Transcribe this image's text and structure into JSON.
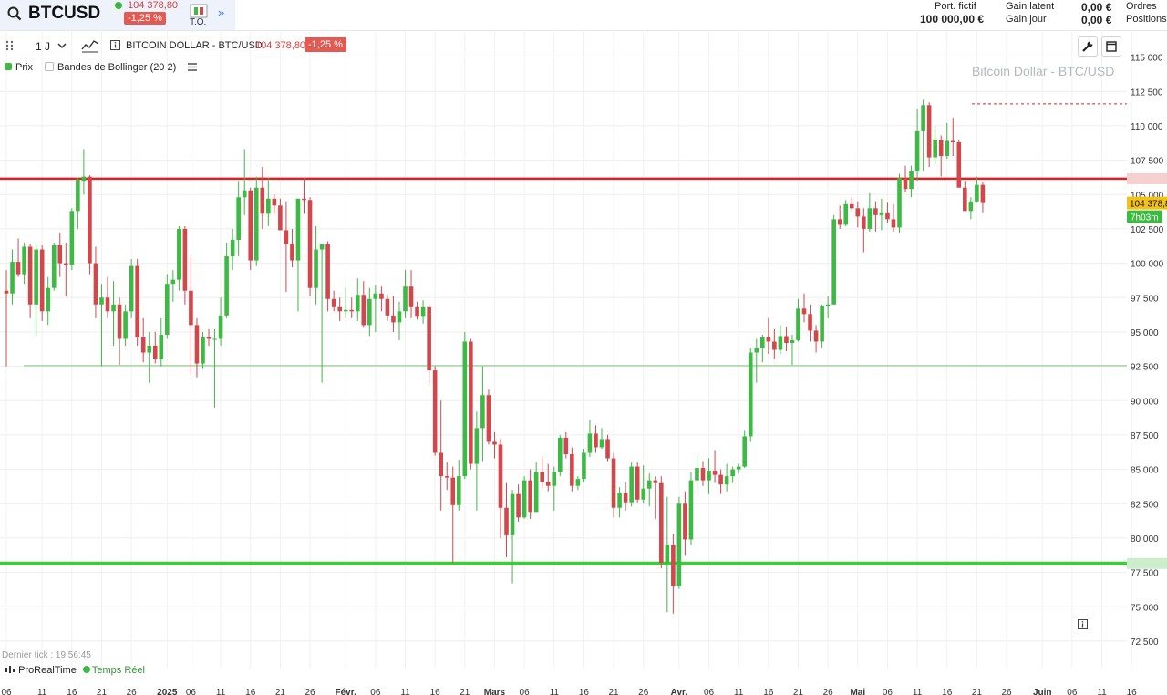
{
  "header": {
    "symbol": "BTCUSD",
    "last_price": "104 378,80",
    "change": "-1,25 %",
    "to_label": "T.O.",
    "portfolio_label": "Port. fictif",
    "portfolio_value": "100 000,00 €",
    "gain_latent_label": "Gain latent",
    "gain_latent_value": "0,00 €",
    "gain_jour_label": "Gain jour",
    "gain_jour_value": "0,00 €",
    "orders_label": "Ordres",
    "positions_label": "Positions"
  },
  "toolbar": {
    "timeframe": "1 J",
    "instrument": "BITCOIN DOLLAR - BTC/USD",
    "price": "104 378,80",
    "change": "-1,25 %"
  },
  "legend": {
    "price_label": "Prix",
    "bollinger_label": "Bandes de Bollinger (20 2)"
  },
  "chart_overlay": {
    "watermark": "Bitcoin Dollar - BTC/USD",
    "price_tag": "104 378,8",
    "countdown": "7h03m",
    "last_tick": "Dernier tick : 19:56:45",
    "realtime_brand": "ProRealTime",
    "realtime_label": "Temps Réel"
  },
  "colors": {
    "bull": "#3cba43",
    "bear": "#d2474b",
    "resistance": "#e02020",
    "support": "#3ecb3e",
    "mid_line": "#79c979",
    "price_tag_bg": "#f2c21b",
    "countdown_bg": "#3cba43"
  },
  "chart_data": {
    "type": "candlestick",
    "title": "BITCOIN DOLLAR - BTC/USD",
    "interval": "1 J",
    "y_ticks": [
      "115 000",
      "112 500",
      "110 000",
      "107 500",
      "105 000",
      "102 500",
      "100 000",
      "97 500",
      "95 000",
      "92 500",
      "90 000",
      "87 500",
      "85 000",
      "82 500",
      "80 000",
      "77 500",
      "75 000",
      "72 500"
    ],
    "y_values": [
      115000,
      112500,
      110000,
      107500,
      105000,
      102500,
      100000,
      97500,
      95000,
      92500,
      90000,
      87500,
      85000,
      82500,
      80000,
      77500,
      75000,
      72500
    ],
    "ylim": [
      71300,
      116300
    ],
    "x_ticks": [
      "06",
      "11",
      "16",
      "21",
      "26",
      "2025",
      "06",
      "11",
      "16",
      "21",
      "26",
      "Févr.",
      "06",
      "11",
      "16",
      "21",
      "Mars",
      "06",
      "11",
      "16",
      "21",
      "26",
      "Avr.",
      "06",
      "11",
      "16",
      "21",
      "26",
      "Mai",
      "06",
      "11",
      "16",
      "21",
      "26",
      "Juin",
      "06",
      "11",
      "16"
    ],
    "x_tick_index": [
      0,
      6,
      11,
      16,
      21,
      27,
      31,
      36,
      41,
      46,
      51,
      57,
      62,
      67,
      72,
      77,
      82,
      87,
      92,
      97,
      102,
      107,
      113,
      118,
      123,
      128,
      133,
      138,
      143,
      148,
      153,
      158,
      163,
      168,
      174,
      179,
      184,
      189
    ],
    "horizontal_lines": [
      {
        "value": 106150,
        "role": "resistance"
      },
      {
        "value": 92550,
        "role": "mid"
      },
      {
        "value": 78150,
        "role": "support"
      },
      {
        "value": 111600,
        "role": "recent-high",
        "dashed": true
      }
    ],
    "current_price": 104378.8,
    "series": [
      {
        "values_ohlc": [
          [
            98000,
            99500,
            92500,
            97800
          ],
          [
            97800,
            101000,
            97000,
            100100
          ],
          [
            100100,
            101800,
            99000,
            99200
          ],
          [
            99200,
            101500,
            98500,
            101200
          ],
          [
            101200,
            101400,
            96000,
            97000
          ],
          [
            97000,
            101300,
            94700,
            101000
          ],
          [
            101000,
            101300,
            95800,
            96500
          ],
          [
            96500,
            99000,
            95500,
            98200
          ],
          [
            98200,
            101500,
            98000,
            101300
          ],
          [
            101300,
            102200,
            99000,
            100000
          ],
          [
            100000,
            101500,
            97600,
            99900
          ],
          [
            99900,
            104000,
            99500,
            103800
          ],
          [
            103800,
            106200,
            102500,
            106100
          ],
          [
            106000,
            108300,
            105000,
            106300
          ],
          [
            106300,
            106400,
            99200,
            100000
          ],
          [
            100000,
            101200,
            96000,
            97000
          ],
          [
            97000,
            98500,
            92500,
            97500
          ],
          [
            97500,
            99000,
            96000,
            96500
          ],
          [
            96500,
            98700,
            94000,
            97000
          ],
          [
            97000,
            97500,
            92600,
            94500
          ],
          [
            94500,
            97000,
            94000,
            96500
          ],
          [
            96500,
            100300,
            96000,
            99800
          ],
          [
            99800,
            100300,
            94000,
            94600
          ],
          [
            94600,
            96000,
            92800,
            93500
          ],
          [
            93500,
            95000,
            91300,
            94000
          ],
          [
            94000,
            95000,
            92700,
            93000
          ],
          [
            93000,
            96000,
            92500,
            94800
          ],
          [
            94800,
            99200,
            94500,
            98500
          ],
          [
            98500,
            99500,
            97200,
            98800
          ],
          [
            98800,
            102700,
            98000,
            102500
          ],
          [
            102500,
            102700,
            97000,
            98000
          ],
          [
            98000,
            100500,
            92000,
            95500
          ],
          [
            95500,
            96000,
            91700,
            92700
          ],
          [
            92700,
            95000,
            92300,
            94600
          ],
          [
            94600,
            95200,
            94000,
            94500
          ],
          [
            94500,
            95200,
            89500,
            94500
          ],
          [
            94500,
            97500,
            94000,
            96200
          ],
          [
            96200,
            101500,
            96000,
            100500
          ],
          [
            100500,
            102500,
            99500,
            101700
          ],
          [
            101700,
            106000,
            100500,
            104800
          ],
          [
            104800,
            108300,
            103500,
            105300
          ],
          [
            105300,
            105500,
            99500,
            100200
          ],
          [
            100200,
            106300,
            99800,
            105500
          ],
          [
            105500,
            107000,
            102500,
            103600
          ],
          [
            103600,
            106200,
            102700,
            104700
          ],
          [
            104700,
            105000,
            103600,
            104200
          ],
          [
            104200,
            104700,
            102800,
            102400
          ],
          [
            102400,
            104500,
            97900,
            101400
          ],
          [
            101400,
            102500,
            99700,
            100200
          ],
          [
            100200,
            103500,
            96500,
            104700
          ],
          [
            104700,
            106200,
            103600,
            104600
          ],
          [
            104600,
            104800,
            97600,
            98200
          ],
          [
            98200,
            102700,
            97000,
            101000
          ],
          [
            101000,
            101400,
            91300,
            101400
          ],
          [
            101400,
            101600,
            96500,
            97400
          ],
          [
            97400,
            98000,
            96500,
            96800
          ],
          [
            96800,
            97500,
            95800,
            96500
          ],
          [
            96500,
            98200,
            96000,
            96600
          ],
          [
            96600,
            97500,
            96000,
            96500
          ],
          [
            96500,
            98900,
            95800,
            97700
          ],
          [
            97700,
            98700,
            95300,
            95500
          ],
          [
            95500,
            98200,
            94700,
            97400
          ],
          [
            97400,
            98400,
            95000,
            97800
          ],
          [
            97800,
            98300,
            96500,
            97400
          ],
          [
            97400,
            97700,
            95800,
            96200
          ],
          [
            96200,
            97600,
            95000,
            95700
          ],
          [
            95700,
            97200,
            94400,
            96500
          ],
          [
            96500,
            99500,
            96000,
            98300
          ],
          [
            98300,
            99500,
            96000,
            96800
          ],
          [
            96800,
            97200,
            95900,
            96100
          ],
          [
            96100,
            97300,
            95600,
            96800
          ],
          [
            96800,
            97000,
            91200,
            92200
          ],
          [
            92200,
            92500,
            86000,
            86200
          ],
          [
            86200,
            90000,
            82000,
            84500
          ],
          [
            84500,
            85500,
            83500,
            84400
          ],
          [
            84400,
            85200,
            78200,
            82400
          ],
          [
            82400,
            85700,
            82000,
            84500
          ],
          [
            84500,
            95000,
            84300,
            94300
          ],
          [
            94300,
            94500,
            85000,
            85400
          ],
          [
            85400,
            89200,
            82000,
            88000
          ],
          [
            88000,
            92500,
            85600,
            90400
          ],
          [
            90400,
            90800,
            86800,
            87000
          ],
          [
            87000,
            87700,
            85800,
            86800
          ],
          [
            86800,
            87200,
            80000,
            82200
          ],
          [
            82200,
            84000,
            78600,
            80200
          ],
          [
            80200,
            83500,
            76700,
            83200
          ],
          [
            83200,
            83900,
            81200,
            81500
          ],
          [
            81500,
            84500,
            81400,
            84200
          ],
          [
            84200,
            85000,
            81400,
            81900
          ],
          [
            81900,
            85500,
            81900,
            84800
          ],
          [
            84800,
            85900,
            83600,
            84100
          ],
          [
            84100,
            85400,
            83400,
            83800
          ],
          [
            83800,
            85200,
            82000,
            84800
          ],
          [
            84800,
            87500,
            84500,
            87300
          ],
          [
            87300,
            87700,
            85800,
            86100
          ],
          [
            86100,
            86600,
            83400,
            83800
          ],
          [
            83800,
            84500,
            83500,
            84300
          ],
          [
            84300,
            86500,
            84100,
            86200
          ],
          [
            86200,
            88600,
            85900,
            87600
          ],
          [
            87600,
            88200,
            86200,
            86600
          ],
          [
            86600,
            88000,
            86500,
            87200
          ],
          [
            87200,
            87500,
            85600,
            85800
          ],
          [
            85800,
            86200,
            81500,
            82200
          ],
          [
            82200,
            83700,
            81500,
            83300
          ],
          [
            83300,
            84100,
            82000,
            82600
          ],
          [
            82600,
            85500,
            82300,
            85200
          ],
          [
            85200,
            85500,
            82600,
            82800
          ],
          [
            82800,
            85300,
            82500,
            83600
          ],
          [
            83600,
            84700,
            82300,
            84200
          ],
          [
            84200,
            84500,
            81400,
            84000
          ],
          [
            84000,
            84500,
            77800,
            78200
          ],
          [
            78200,
            83000,
            74600,
            79500
          ],
          [
            79500,
            80300,
            74500,
            76500
          ],
          [
            76500,
            83000,
            76300,
            82500
          ],
          [
            82500,
            83400,
            78700,
            79900
          ],
          [
            79900,
            84800,
            79500,
            84200
          ],
          [
            84200,
            86000,
            83500,
            85100
          ],
          [
            85100,
            85600,
            83800,
            84200
          ],
          [
            84200,
            85800,
            83200,
            84900
          ],
          [
            84900,
            86400,
            84000,
            84600
          ],
          [
            84600,
            85000,
            83200,
            83900
          ],
          [
            83900,
            85400,
            83400,
            84500
          ],
          [
            84500,
            85200,
            84000,
            85000
          ],
          [
            85000,
            85400,
            84700,
            85200
          ],
          [
            85200,
            87800,
            85100,
            87400
          ],
          [
            87400,
            93800,
            87000,
            93500
          ],
          [
            93500,
            94500,
            91300,
            93800
          ],
          [
            93800,
            94800,
            92800,
            94600
          ],
          [
            94600,
            96000,
            93400,
            94300
          ],
          [
            94300,
            95200,
            93000,
            93700
          ],
          [
            93700,
            95500,
            93400,
            94700
          ],
          [
            94700,
            95400,
            93600,
            94200
          ],
          [
            94200,
            94800,
            92600,
            94400
          ],
          [
            94400,
            97400,
            94300,
            96700
          ],
          [
            96700,
            97800,
            95700,
            96300
          ],
          [
            96300,
            97000,
            94300,
            95100
          ],
          [
            95100,
            95500,
            93500,
            94300
          ],
          [
            94300,
            97000,
            93800,
            96900
          ],
          [
            96900,
            97600,
            96000,
            97000
          ],
          [
            97000,
            103500,
            97000,
            103200
          ],
          [
            103200,
            104200,
            102500,
            102800
          ],
          [
            102800,
            104600,
            102700,
            104300
          ],
          [
            104300,
            104800,
            103800,
            104000
          ],
          [
            104000,
            104500,
            102600,
            103400
          ],
          [
            103400,
            104000,
            100800,
            102500
          ],
          [
            102500,
            105100,
            102300,
            104000
          ],
          [
            104000,
            104500,
            102300,
            103500
          ],
          [
            103500,
            104700,
            102400,
            103700
          ],
          [
            103700,
            104400,
            102900,
            103200
          ],
          [
            103200,
            104300,
            102300,
            102600
          ],
          [
            102600,
            106500,
            102200,
            106200
          ],
          [
            106200,
            107100,
            105200,
            105400
          ],
          [
            105400,
            107100,
            104800,
            106700
          ],
          [
            106700,
            111200,
            106000,
            109600
          ],
          [
            109600,
            111900,
            106700,
            111500
          ],
          [
            111500,
            111700,
            107000,
            107700
          ],
          [
            107700,
            110000,
            107200,
            109000
          ],
          [
            109000,
            109300,
            106300,
            107800
          ],
          [
            107800,
            110200,
            107600,
            108900
          ],
          [
            108900,
            110600,
            107800,
            108800
          ],
          [
            108800,
            109000,
            105900,
            105500
          ],
          [
            105500,
            106000,
            104100,
            103800
          ],
          [
            103800,
            104800,
            103200,
            104500
          ],
          [
            104500,
            106300,
            104400,
            105700
          ],
          [
            105700,
            105900,
            103700,
            104379
          ]
        ]
      }
    ]
  }
}
